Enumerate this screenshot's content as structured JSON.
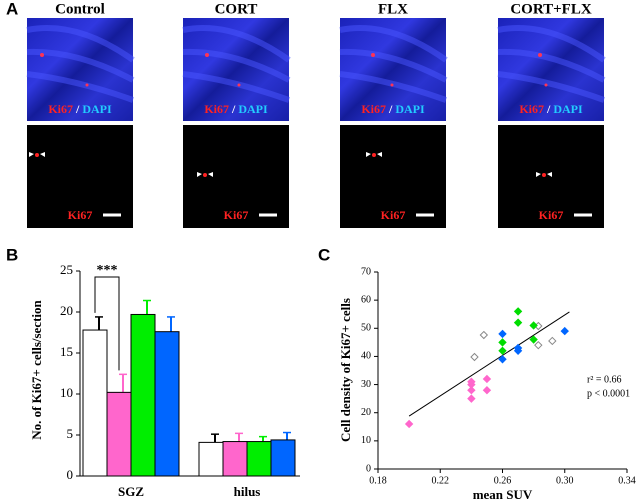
{
  "panel_labels": [
    "A",
    "B",
    "C"
  ],
  "images": {
    "top_label": {
      "marker": "Ki67",
      "separator": "/",
      "stain": "DAPI"
    },
    "bottom_label": "Ki67"
  },
  "chart_data": [
    {
      "type": "bar",
      "y_label": "No. of Ki67+ cells/section",
      "categories": [
        "SGZ",
        "hilus"
      ],
      "ylim": [
        0,
        25
      ],
      "yticks": [
        0,
        5,
        10,
        15,
        20,
        25
      ],
      "annotation": "***",
      "series": [
        {
          "name": "Control",
          "color": "#ffffff",
          "values": [
            17.8,
            4.1
          ],
          "errors": [
            1.6,
            1.0
          ]
        },
        {
          "name": "CORT",
          "color": "#ff66cc",
          "values": [
            10.2,
            4.2
          ],
          "errors": [
            2.2,
            1.0
          ]
        },
        {
          "name": "FLX",
          "color": "#00ee00",
          "values": [
            19.7,
            4.2
          ],
          "errors": [
            1.7,
            0.6
          ]
        },
        {
          "name": "CORT+FLX",
          "color": "#0066ff",
          "values": [
            17.6,
            4.4
          ],
          "errors": [
            1.8,
            0.9
          ]
        }
      ]
    },
    {
      "type": "scatter",
      "x_label": "mean SUV",
      "y_label": "Cell density of Ki67+ cells",
      "xlim": [
        0.18,
        0.34
      ],
      "xticks": [
        0.18,
        0.22,
        0.26,
        {
          "value": 0.3,
          "label": "0.30"
        },
        0.34
      ],
      "ylim": [
        0,
        70
      ],
      "yticks": [
        0,
        10,
        20,
        30,
        40,
        50,
        60,
        70
      ],
      "annotations": [
        "r² = 0.66",
        "p < 0.0001"
      ],
      "trendline": {
        "color": "#000000",
        "x": [
          0.2,
          0.303
        ],
        "y": [
          18.8,
          55.8
        ]
      },
      "series": [
        {
          "color": "#888888",
          "filled": false,
          "x": [
            0.248,
            0.242,
            0.283,
            0.292,
            0.283
          ],
          "y": [
            47.6,
            39.8,
            44,
            45.5,
            50.8
          ]
        },
        {
          "color": "#ff66cc",
          "filled": true,
          "x": [
            0.2,
            0.24,
            0.24,
            0.24,
            0.24,
            0.25,
            0.25
          ],
          "y": [
            16,
            25,
            28,
            30,
            31,
            28,
            32
          ]
        },
        {
          "color": "#00dd00",
          "filled": true,
          "x": [
            0.26,
            0.26,
            0.27,
            0.27,
            0.28,
            0.28
          ],
          "y": [
            45,
            42,
            56,
            52,
            51,
            46
          ]
        },
        {
          "color": "#0066ff",
          "filled": true,
          "x": [
            0.26,
            0.26,
            0.27,
            0.27,
            0.3
          ],
          "y": [
            48,
            39,
            42,
            43,
            49
          ]
        }
      ]
    }
  ]
}
